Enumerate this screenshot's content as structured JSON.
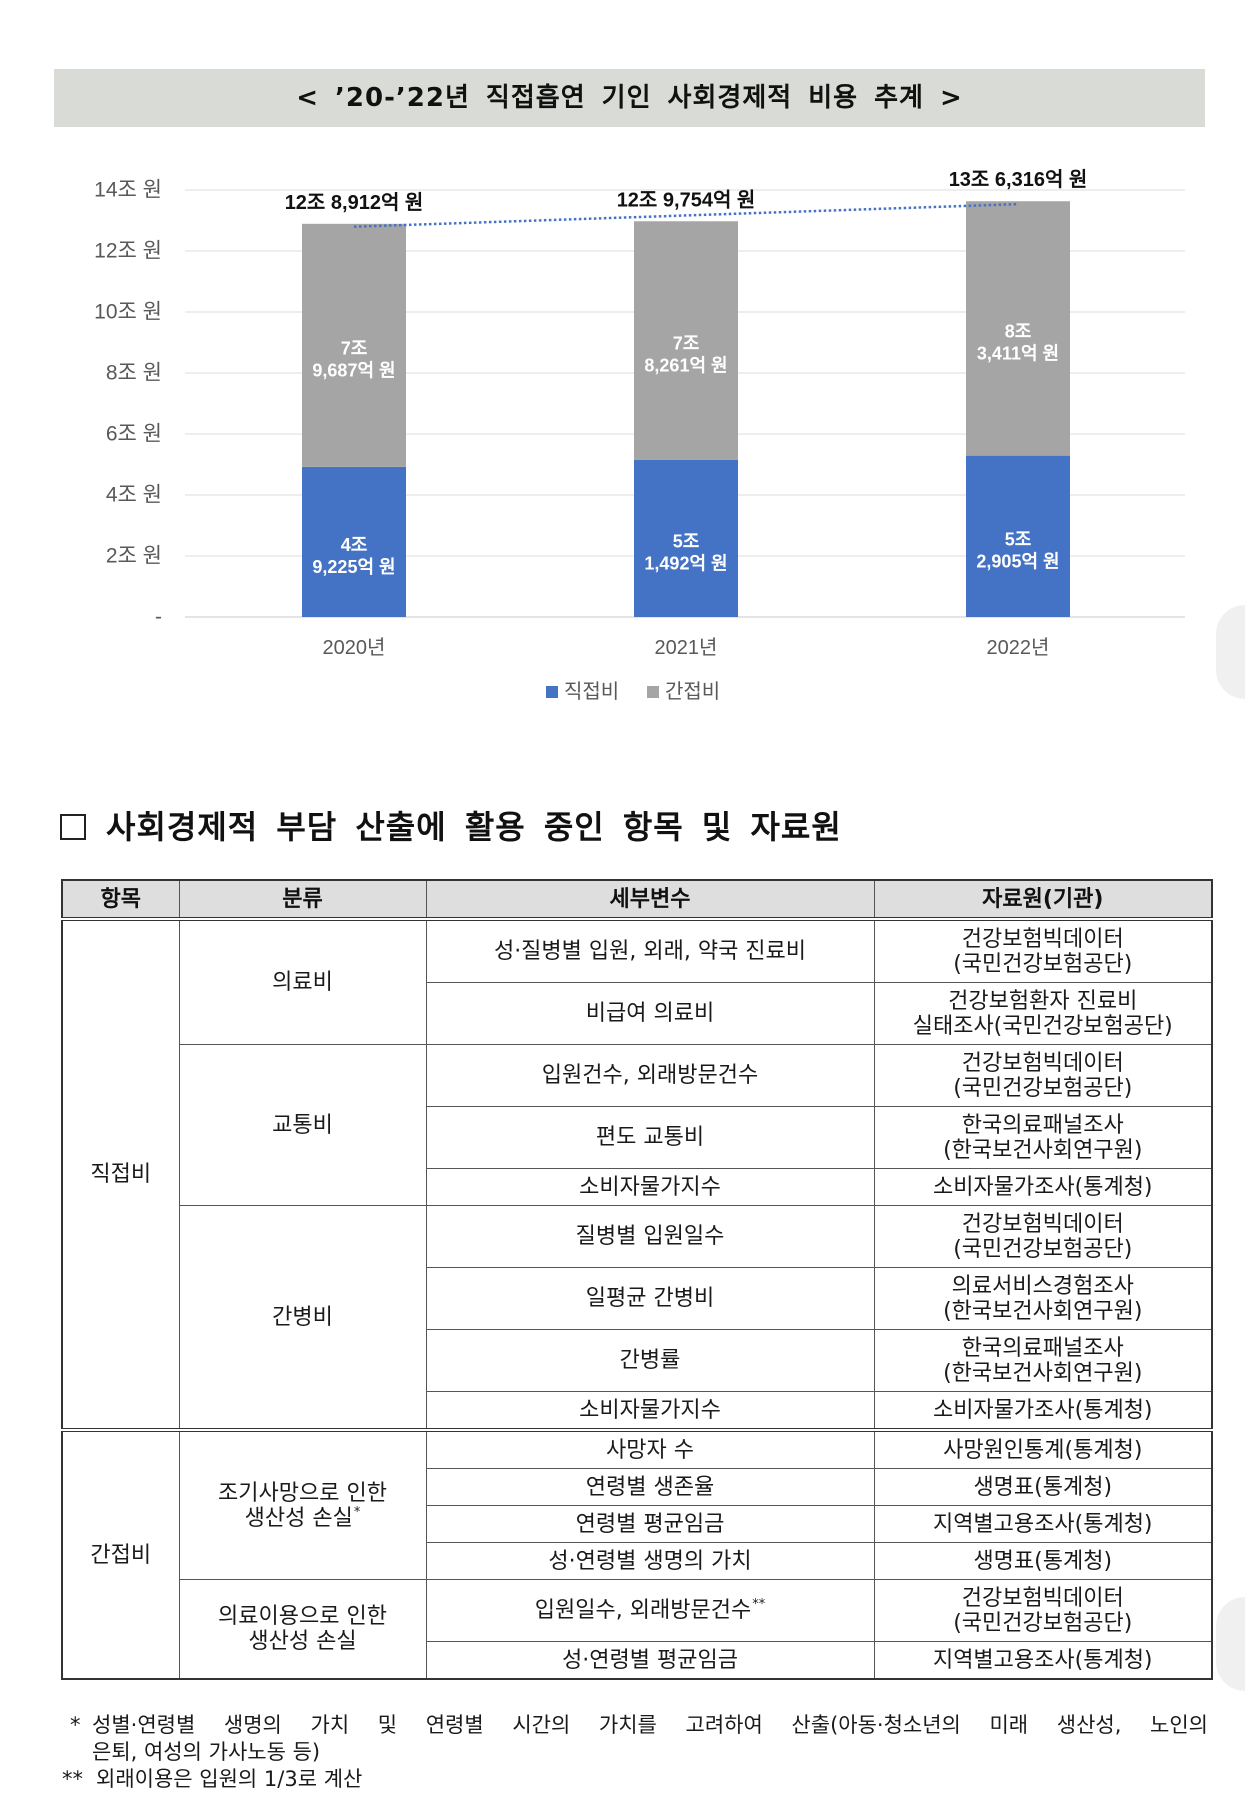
{
  "banner": {
    "title": "< ’20-’22년 직접흡연 기인 사회경제적 비용 추계 >"
  },
  "chart_data": {
    "type": "bar",
    "stacked": true,
    "categories": [
      "2020년",
      "2021년",
      "2022년"
    ],
    "series": [
      {
        "name": "직접비",
        "color": "#4472c4",
        "values": [
          4.9225,
          5.1492,
          5.2905
        ],
        "labels": [
          [
            "4조",
            "9,225억 원"
          ],
          [
            "5조",
            "1,492억 원"
          ],
          [
            "5조",
            "2,905억 원"
          ]
        ]
      },
      {
        "name": "간접비",
        "color": "#a5a5a5",
        "values": [
          7.9687,
          7.8261,
          8.3411
        ],
        "labels": [
          [
            "7조",
            "9,687억 원"
          ],
          [
            "7조",
            "8,261억 원"
          ],
          [
            "8조",
            "3,411억 원"
          ]
        ]
      }
    ],
    "totals": {
      "values": [
        12.8912,
        12.9754,
        13.6316
      ],
      "labels": [
        "12조 8,912억 원",
        "12조 9,754억 원",
        "13조 6,316억 원"
      ]
    },
    "trendline": {
      "show": true,
      "color": "#4472c4"
    },
    "yticks": [
      {
        "value": 0,
        "label": "-"
      },
      {
        "value": 2,
        "label": "2조 원"
      },
      {
        "value": 4,
        "label": "4조 원"
      },
      {
        "value": 6,
        "label": "6조 원"
      },
      {
        "value": 8,
        "label": "8조 원"
      },
      {
        "value": 10,
        "label": "10조 원"
      },
      {
        "value": 12,
        "label": "12조 원"
      },
      {
        "value": 14,
        "label": "14조 원"
      }
    ],
    "ylim": [
      0,
      14
    ],
    "grid": true,
    "legend": "bottom"
  },
  "section": {
    "title": "사회경제적 부담 산출에 활용 중인 항목 및 자료원"
  },
  "table": {
    "headers": {
      "item": "항목",
      "category": "분류",
      "variable": "세부변수",
      "source": "자료원(기관)"
    },
    "items": [
      "직접비",
      "간접비"
    ],
    "categories": [
      {
        "lines": [
          "의료비"
        ]
      },
      {
        "lines": [
          "교통비"
        ]
      },
      {
        "lines": [
          "간병비"
        ]
      },
      {
        "lines": [
          "조기사망으로 인한",
          "생산성 손실"
        ],
        "sup": "*"
      },
      {
        "lines": [
          "의료이용으로 인한",
          "생산성 손실"
        ]
      }
    ],
    "rows": [
      {
        "variable": "성·질병별 입원, 외래, 약국 진료비",
        "source": [
          "건강보험빅데이터",
          "(국민건강보험공단)"
        ]
      },
      {
        "variable": "비급여 의료비",
        "source": [
          "건강보험환자 진료비",
          "실태조사(국민건강보험공단)"
        ]
      },
      {
        "variable": "입원건수, 외래방문건수",
        "source": [
          "건강보험빅데이터",
          "(국민건강보험공단)"
        ]
      },
      {
        "variable": "편도 교통비",
        "source": [
          "한국의료패널조사",
          "(한국보건사회연구원)"
        ]
      },
      {
        "variable": "소비자물가지수",
        "source": [
          "소비자물가조사(통계청)"
        ]
      },
      {
        "variable": "질병별 입원일수",
        "source": [
          "건강보험빅데이터",
          "(국민건강보험공단)"
        ]
      },
      {
        "variable": "일평균 간병비",
        "source": [
          "의료서비스경험조사",
          "(한국보건사회연구원)"
        ]
      },
      {
        "variable": "간병률",
        "source": [
          "한국의료패널조사",
          "(한국보건사회연구원)"
        ]
      },
      {
        "variable": "소비자물가지수",
        "source": [
          "소비자물가조사(통계청)"
        ]
      },
      {
        "variable": "사망자 수",
        "source": [
          "사망원인통계(통계청)"
        ]
      },
      {
        "variable": "연령별 생존율",
        "source": [
          "생명표(통계청)"
        ]
      },
      {
        "variable": "연령별 평균임금",
        "source": [
          "지역별고용조사(통계청)"
        ]
      },
      {
        "variable": "성·연령별 생명의 가치",
        "source": [
          "생명표(통계청)"
        ]
      },
      {
        "variable": "입원일수, 외래방문건수",
        "sup": "**",
        "source": [
          "건강보험빅데이터",
          "(국민건강보험공단)"
        ]
      },
      {
        "variable": "성·연령별 평균임금",
        "source": [
          "지역별고용조사(통계청)"
        ]
      }
    ]
  },
  "footnotes": [
    {
      "mark": "*",
      "lines": [
        "성별·연령별 생명의 가치 및 연령별 시간의 가치를 고려하여 산출(아동·청소년의 미래 생산성, 노인의",
        "은퇴, 여성의 가사노동 등)"
      ]
    },
    {
      "mark": "**",
      "lines": [
        "외래이용은 입원의 1/3로 계산"
      ]
    }
  ]
}
